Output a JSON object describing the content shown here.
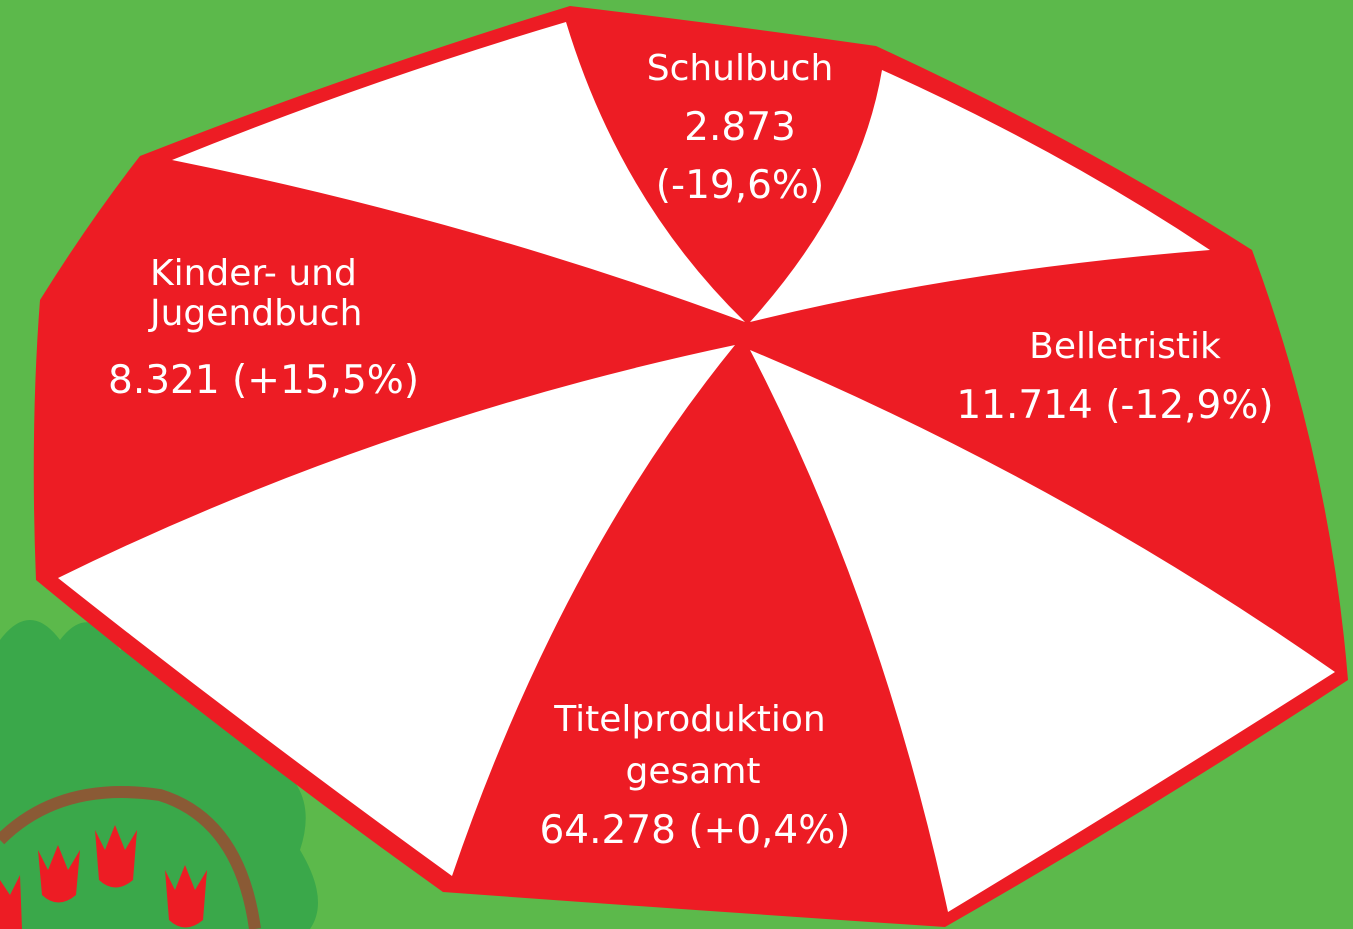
{
  "segments": [
    {
      "lines": [
        "Schulbuch",
        "2.873",
        "(-19,6%)"
      ]
    },
    {
      "lines": [
        "Kinder- und",
        "Jugendbuch",
        "8.321 (+15,5%)"
      ]
    },
    {
      "lines": [
        "Belletristik",
        "11.714 (-12,9%)"
      ]
    },
    {
      "lines": [
        "Titelproduktion",
        "gesamt",
        "64.278 (+0,4%)"
      ]
    }
  ]
}
